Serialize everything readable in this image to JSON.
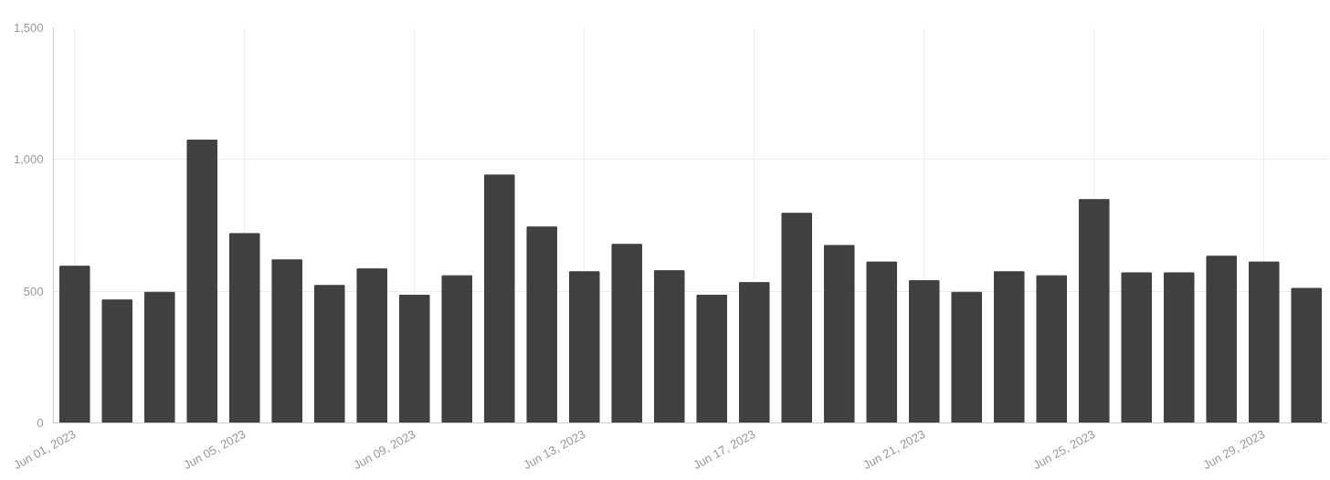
{
  "chart_data": {
    "type": "bar",
    "x": [
      "2023-06-01",
      "2023-06-02",
      "2023-06-03",
      "2023-06-04",
      "2023-06-05",
      "2023-06-06",
      "2023-06-07",
      "2023-06-08",
      "2023-06-09",
      "2023-06-10",
      "2023-06-11",
      "2023-06-12",
      "2023-06-13",
      "2023-06-14",
      "2023-06-15",
      "2023-06-16",
      "2023-06-17",
      "2023-06-18",
      "2023-06-19",
      "2023-06-20",
      "2023-06-21",
      "2023-06-22",
      "2023-06-23",
      "2023-06-24",
      "2023-06-25",
      "2023-06-26",
      "2023-06-27",
      "2023-06-28",
      "2023-06-29",
      "2023-06-30"
    ],
    "values": [
      595,
      467,
      496,
      1074,
      719,
      619,
      522,
      585,
      485,
      559,
      941,
      744,
      574,
      678,
      578,
      485,
      533,
      796,
      674,
      611,
      540,
      496,
      574,
      559,
      848,
      570,
      570,
      633,
      611,
      511
    ],
    "color": "#404040",
    "xlim": [
      "2023-05-31T12:00",
      "2023-06-30T12:00"
    ],
    "xticks": [
      {
        "value": "2023-06-01",
        "label": "Jun 01, 2023"
      },
      {
        "value": "2023-06-05",
        "label": "Jun 05, 2023"
      },
      {
        "value": "2023-06-09",
        "label": "Jun 09, 2023"
      },
      {
        "value": "2023-06-13",
        "label": "Jun 13, 2023"
      },
      {
        "value": "2023-06-17",
        "label": "Jun 17, 2023"
      },
      {
        "value": "2023-06-21",
        "label": "Jun 21, 2023"
      },
      {
        "value": "2023-06-25",
        "label": "Jun 25, 2023"
      },
      {
        "value": "2023-06-29",
        "label": "Jun 29, 2023"
      }
    ],
    "ylim": [
      0,
      1500
    ],
    "yticks": [
      0,
      {
        "value": 500,
        "label": "500"
      },
      {
        "value": 1000,
        "label": "1,000"
      },
      {
        "value": 1500,
        "label": "1,500"
      }
    ],
    "grid": true
  }
}
